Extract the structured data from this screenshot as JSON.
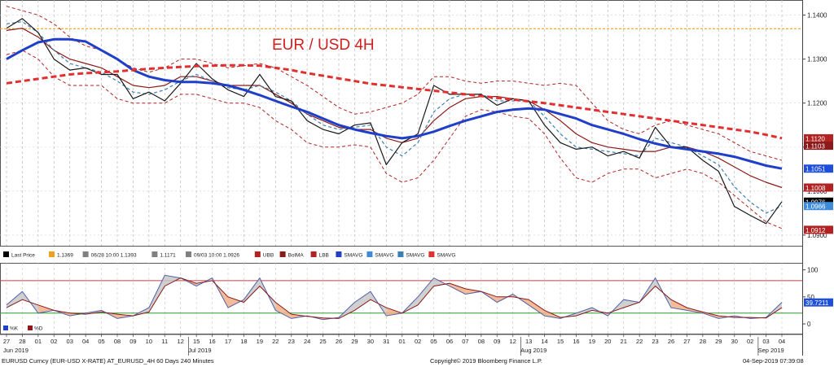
{
  "chart_data": [
    {
      "type": "line",
      "title": "EUR / USD 4H",
      "ylim": [
        1.0885,
        1.1425
      ],
      "yticks": [
        "1.1400",
        "1.1300",
        "1.1200",
        "1.1100",
        "1.1000",
        "1.0900"
      ],
      "hline": 1.1369,
      "grid": true,
      "x_day_labels": [
        "27",
        "28",
        "01",
        "02",
        "03",
        "04",
        "05",
        "08",
        "09",
        "10",
        "11",
        "12",
        "15",
        "16",
        "17",
        "18",
        "19",
        "22",
        "23",
        "24",
        "25",
        "26",
        "29",
        "30",
        "31",
        "01",
        "02",
        "05",
        "06",
        "07",
        "08",
        "09",
        "12",
        "13",
        "14",
        "15",
        "16",
        "19",
        "20",
        "21",
        "22",
        "23",
        "26",
        "27",
        "28",
        "29",
        "30",
        "02",
        "03",
        "04"
      ],
      "month_labels": [
        {
          "text": "Jun 2019",
          "at": 0
        },
        {
          "text": "Jul 2019",
          "at": 12
        },
        {
          "text": "Aug 2019",
          "at": 33
        },
        {
          "text": "Sep 2019",
          "at": 48
        }
      ],
      "price_tags": [
        {
          "text": "1.1120",
          "value": 1.112,
          "bg": "#b22222",
          "fg": "#ffffff"
        },
        {
          "text": "1.1103",
          "value": 1.1103,
          "bg": "#8b1a1a",
          "fg": "#ffffff"
        },
        {
          "text": "1.1051",
          "value": 1.1051,
          "bg": "#1f4fd8",
          "fg": "#ffffff"
        },
        {
          "text": "1.1008",
          "value": 1.1008,
          "bg": "#b22222",
          "fg": "#ffffff"
        },
        {
          "text": "1.0976",
          "value": 1.0976,
          "bg": "#000000",
          "fg": "#ffffff"
        },
        {
          "text": "1.0966",
          "value": 1.0966,
          "bg": "#3d8bd9",
          "fg": "#ffffff"
        },
        {
          "text": "1.0912",
          "value": 1.0912,
          "bg": "#b22222",
          "fg": "#ffffff"
        }
      ],
      "legend": [
        {
          "label": "Last Price",
          "color": "#000000"
        },
        {
          "label": "1.1369",
          "color": "#f0a020"
        },
        {
          "label": "06/28 10:00 1.1393",
          "color": "#808080"
        },
        {
          "label": "1.1171",
          "color": "#808080"
        },
        {
          "label": "09/03 10:00 1.0926",
          "color": "#808080"
        },
        {
          "label": "UBB",
          "color": "#b22222"
        },
        {
          "label": "BolMA",
          "color": "#8b1a1a"
        },
        {
          "label": "LBB",
          "color": "#b22222"
        },
        {
          "label": "SMAVG",
          "color": "#1f3fc8"
        },
        {
          "label": "SMAVG",
          "color": "#3d8bd9"
        },
        {
          "label": "SMAVG",
          "color": "#3d7fb0"
        },
        {
          "label": "SMAVG",
          "color": "#e03030"
        }
      ],
      "series": [
        {
          "name": "Last Price",
          "color": "#1a1a1a",
          "values": [
            1.137,
            1.1392,
            1.136,
            1.13,
            1.1275,
            1.128,
            1.1265,
            1.1265,
            1.121,
            1.1225,
            1.1205,
            1.1245,
            1.129,
            1.1255,
            1.123,
            1.1215,
            1.1265,
            1.1215,
            1.1205,
            1.116,
            1.114,
            1.113,
            1.115,
            1.1155,
            1.106,
            1.111,
            1.113,
            1.124,
            1.122,
            1.122,
            1.122,
            1.1195,
            1.121,
            1.1205,
            1.115,
            1.111,
            1.1095,
            1.11,
            1.108,
            1.109,
            1.1075,
            1.1145,
            1.11,
            1.11,
            1.107,
            1.1045,
            1.0965,
            1.0945,
            1.0926,
            1.0976
          ]
        },
        {
          "name": "BolMA",
          "color": "#8b1a1a",
          "values": [
            1.1365,
            1.137,
            1.135,
            1.132,
            1.13,
            1.129,
            1.128,
            1.126,
            1.124,
            1.1235,
            1.124,
            1.126,
            1.126,
            1.125,
            1.124,
            1.124,
            1.124,
            1.122,
            1.12,
            1.1175,
            1.116,
            1.1145,
            1.114,
            1.114,
            1.112,
            1.111,
            1.112,
            1.116,
            1.119,
            1.121,
            1.1215,
            1.1215,
            1.121,
            1.1205,
            1.1185,
            1.116,
            1.113,
            1.111,
            1.11,
            1.1095,
            1.109,
            1.109,
            1.11,
            1.11,
            1.109,
            1.1075,
            1.1055,
            1.1035,
            1.102,
            1.1008
          ]
        },
        {
          "name": "UBB",
          "color": "#b22222",
          "values": [
            1.142,
            1.141,
            1.14,
            1.138,
            1.135,
            1.133,
            1.132,
            1.13,
            1.128,
            1.127,
            1.128,
            1.13,
            1.13,
            1.129,
            1.128,
            1.1285,
            1.129,
            1.128,
            1.126,
            1.124,
            1.1215,
            1.119,
            1.1175,
            1.118,
            1.119,
            1.12,
            1.122,
            1.126,
            1.126,
            1.125,
            1.1245,
            1.125,
            1.125,
            1.1245,
            1.124,
            1.1245,
            1.124,
            1.12,
            1.116,
            1.114,
            1.113,
            1.115,
            1.116,
            1.115,
            1.114,
            1.113,
            1.111,
            1.109,
            1.108,
            1.107
          ]
        },
        {
          "name": "LBB",
          "color": "#b22222",
          "values": [
            1.131,
            1.132,
            1.13,
            1.126,
            1.124,
            1.124,
            1.124,
            1.121,
            1.12,
            1.12,
            1.12,
            1.122,
            1.122,
            1.121,
            1.12,
            1.12,
            1.119,
            1.116,
            1.114,
            1.111,
            1.11,
            1.11,
            1.1105,
            1.11,
            1.104,
            1.102,
            1.103,
            1.107,
            1.112,
            1.117,
            1.1185,
            1.118,
            1.117,
            1.1165,
            1.113,
            1.1075,
            1.103,
            1.102,
            1.104,
            1.105,
            1.105,
            1.103,
            1.104,
            1.105,
            1.104,
            1.102,
            1.099,
            1.096,
            1.093,
            1.0915
          ]
        },
        {
          "name": "SMAVG",
          "color": "#3d7fb0",
          "dash": true,
          "values": [
            1.138,
            1.1385,
            1.136,
            1.132,
            1.129,
            1.128,
            1.127,
            1.125,
            1.1225,
            1.122,
            1.123,
            1.125,
            1.1265,
            1.125,
            1.1235,
            1.123,
            1.124,
            1.1225,
            1.1205,
            1.1175,
            1.115,
            1.114,
            1.1145,
            1.115,
            1.11,
            1.108,
            1.111,
            1.118,
            1.121,
            1.122,
            1.122,
            1.1205,
            1.1205,
            1.1205,
            1.117,
            1.113,
            1.11,
            1.1095,
            1.109,
            1.1085,
            1.108,
            1.112,
            1.111,
            1.11,
            1.108,
            1.106,
            1.101,
            1.0975,
            1.095,
            1.0966
          ]
        },
        {
          "name": "SMAVG",
          "color": "#1f3fc8",
          "width": 3,
          "values": [
            1.13,
            1.132,
            1.1338,
            1.1345,
            1.1345,
            1.134,
            1.132,
            1.13,
            1.1275,
            1.126,
            1.1252,
            1.1248,
            1.1248,
            1.1245,
            1.124,
            1.123,
            1.1218,
            1.1205,
            1.1192,
            1.118,
            1.1165,
            1.115,
            1.114,
            1.1132,
            1.1125,
            1.112,
            1.1125,
            1.1135,
            1.1148,
            1.116,
            1.117,
            1.118,
            1.1185,
            1.1188,
            1.1185,
            1.1175,
            1.1165,
            1.115,
            1.114,
            1.113,
            1.1118,
            1.1108,
            1.11,
            1.1095,
            1.109,
            1.1085,
            1.1078,
            1.1068,
            1.1058,
            1.1051
          ]
        },
        {
          "name": "SMAVG",
          "color": "#e03030",
          "width": 3,
          "dash": true,
          "values": [
            1.1245,
            1.125,
            1.1255,
            1.126,
            1.1265,
            1.1268,
            1.127,
            1.1272,
            1.1275,
            1.1278,
            1.128,
            1.1282,
            1.1284,
            1.1285,
            1.1286,
            1.1286,
            1.1285,
            1.128,
            1.1275,
            1.1268,
            1.1262,
            1.1256,
            1.125,
            1.1244,
            1.124,
            1.1236,
            1.1232,
            1.1228,
            1.1224,
            1.122,
            1.1216,
            1.1212,
            1.1208,
            1.1204,
            1.12,
            1.1195,
            1.119,
            1.1185,
            1.118,
            1.1175,
            1.117,
            1.1165,
            1.116,
            1.1155,
            1.115,
            1.1145,
            1.114,
            1.1135,
            1.1128,
            1.112
          ]
        }
      ]
    },
    {
      "type": "line",
      "ylim": [
        -15,
        110
      ],
      "yticks": [
        "100",
        "50",
        "0"
      ],
      "levels": [
        80,
        20
      ],
      "value_tag": {
        "text": "39.7211",
        "value": 39.7211
      },
      "legend": [
        {
          "label": "%K",
          "color": "#1f3fc8"
        },
        {
          "label": "%D",
          "color": "#8b1a1a"
        }
      ],
      "series": [
        {
          "name": "%K",
          "color": "#5060a8",
          "values": [
            35,
            60,
            20,
            25,
            15,
            20,
            25,
            10,
            15,
            30,
            90,
            85,
            70,
            85,
            30,
            45,
            85,
            25,
            10,
            15,
            8,
            12,
            40,
            60,
            15,
            20,
            50,
            85,
            70,
            55,
            60,
            40,
            55,
            35,
            15,
            10,
            20,
            30,
            15,
            45,
            40,
            85,
            30,
            25,
            20,
            10,
            15,
            10,
            12,
            40
          ]
        },
        {
          "name": "%D",
          "color": "#8b1a1a",
          "values": [
            30,
            45,
            35,
            25,
            20,
            18,
            22,
            18,
            15,
            22,
            70,
            85,
            75,
            80,
            50,
            40,
            70,
            40,
            18,
            14,
            11,
            10,
            25,
            45,
            30,
            20,
            35,
            70,
            75,
            65,
            60,
            50,
            50,
            45,
            25,
            12,
            15,
            25,
            20,
            30,
            40,
            70,
            45,
            30,
            22,
            15,
            12,
            12,
            11,
            30
          ]
        }
      ]
    }
  ],
  "footer": {
    "left": "EURUSD Curncy (EUR-USD X-RATE) AT_EURUSD_4H 60 Days 240 Minutes",
    "center": "Copyright© 2019 Bloomberg Finance L.P.",
    "right": "04-Sep-2019 07:39:08"
  }
}
